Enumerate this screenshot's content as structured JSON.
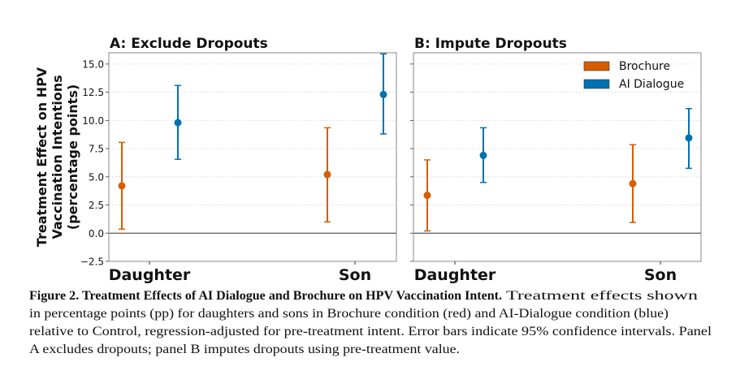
{
  "chart_data": [
    {
      "type": "scatter",
      "title": "A: Exclude Dropouts",
      "ylabel_lines": [
        "Treatment Effect on HPV",
        "Vaccination Intentions",
        "(percentage points)"
      ],
      "categories": [
        "Daughter",
        "Son"
      ],
      "ylim": [
        -2.5,
        16.0
      ],
      "yticks": [
        "−2.5",
        "0.0",
        "2.5",
        "5.0",
        "7.5",
        "10.0",
        "12.5",
        "15.0"
      ],
      "grid": true,
      "series": [
        {
          "name": "Brochure",
          "values": [
            4.2,
            5.2
          ],
          "ci_low": [
            0.35,
            1.0
          ],
          "ci_high": [
            8.05,
            9.35
          ]
        },
        {
          "name": "AI Dialogue",
          "values": [
            9.8,
            12.3
          ],
          "ci_low": [
            6.55,
            8.8
          ],
          "ci_high": [
            13.1,
            15.9
          ]
        }
      ]
    },
    {
      "type": "scatter",
      "title": "B: Impute Dropouts",
      "categories": [
        "Daughter",
        "Son"
      ],
      "ylim": [
        -2.5,
        16.0
      ],
      "grid": true,
      "legend_position": "top-right",
      "series": [
        {
          "name": "Brochure",
          "values": [
            3.35,
            4.4
          ],
          "ci_low": [
            0.2,
            0.95
          ],
          "ci_high": [
            6.5,
            7.85
          ]
        },
        {
          "name": "AI Dialogue",
          "values": [
            6.9,
            8.45
          ],
          "ci_low": [
            4.5,
            5.75
          ],
          "ci_high": [
            9.35,
            11.05
          ]
        }
      ]
    }
  ],
  "colors": {
    "Brochure": "#d55e00",
    "AI Dialogue": "#0072b2"
  },
  "caption": {
    "bold": "Figure 2. Treatment Effects of AI Dialogue and Brochure on HPV Vaccination Intent.",
    "line1_rest": "Treatment effects shown",
    "line2": "in percentage points (pp) for daughters and sons in Brochure condition (red) and AI-Dialogue condition (blue)",
    "line3": "relative to Control, regression-adjusted for pre-treatment intent. Error bars indicate 95% confidence intervals. Panel",
    "line4": "A excludes dropouts; panel B imputes dropouts using pre-treatment value."
  }
}
